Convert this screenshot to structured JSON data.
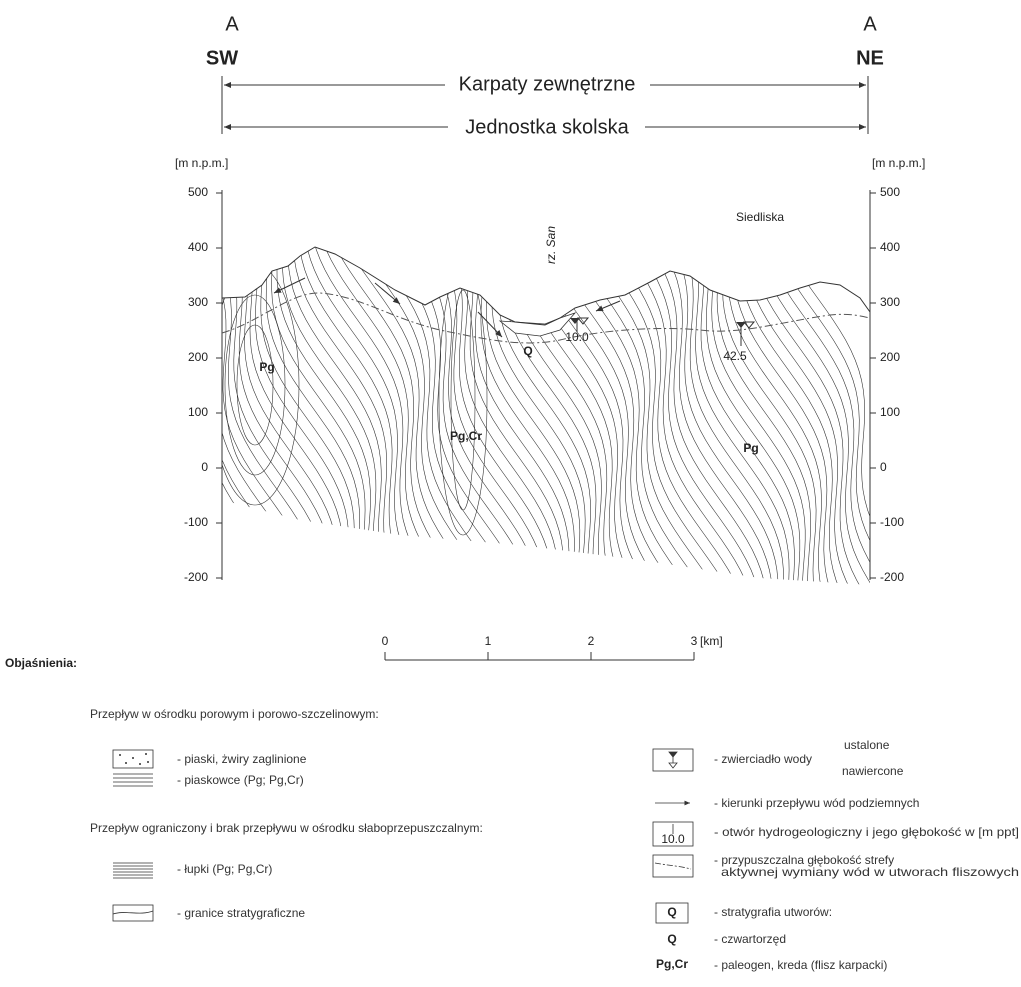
{
  "section": {
    "left_label": "A",
    "right_label": "A",
    "left_direction": "SW",
    "right_direction": "NE",
    "units": [
      "Karpaty zewnętrzne",
      "Jednostka skolska"
    ],
    "axis": {
      "unit_label": "[m n.p.m.]",
      "ticks": [
        500,
        400,
        300,
        200,
        100,
        0,
        -100,
        -200
      ]
    },
    "place": "Siedliska",
    "river": "rz. San",
    "strata_labels": [
      "Pg",
      "Pg,Cr",
      "Q",
      "Pg"
    ],
    "wells": [
      "10.0",
      "42.5"
    ]
  },
  "scale_bar": {
    "ticks": [
      0,
      1,
      2,
      3
    ],
    "unit": "[km]"
  },
  "legend": {
    "title": "Objaśnienia:",
    "left": {
      "group1": "Przepływ w ośrodku porowym i porowo-szczelinowym:",
      "sands": "- piaski, żwiry zaglinione",
      "sandstones": "- piaskowce (Pg; Pg,Cr)",
      "group2": "Przepływ ograniczony i brak przepływu w ośrodku słaboprzepuszczalnym:",
      "shales": "- łupki (Pg; Pg,Cr)",
      "boundaries": "- granice stratygraficzne"
    },
    "right": {
      "water_table": "- zwierciadło wody",
      "water_fixed": "ustalone",
      "water_drilled": "nawiercone",
      "flow": "- kierunki przepływu wód podziemnych",
      "well_icon": "10.0",
      "well": "- otwór hydrogeologiczny i jego głębokość w [m ppt]",
      "zone_1": "- przypuszczalna głębokość strefy",
      "zone_2": "aktywnej wymiany wód w utworach fliszowych",
      "strat_icon": "Q",
      "strat": "- stratygrafia utworów:",
      "q_key": "Q",
      "q": "- czwartorzęd",
      "pg_key": "Pg,Cr",
      "pg": "- paleogen, kreda (flisz karpacki)"
    }
  }
}
